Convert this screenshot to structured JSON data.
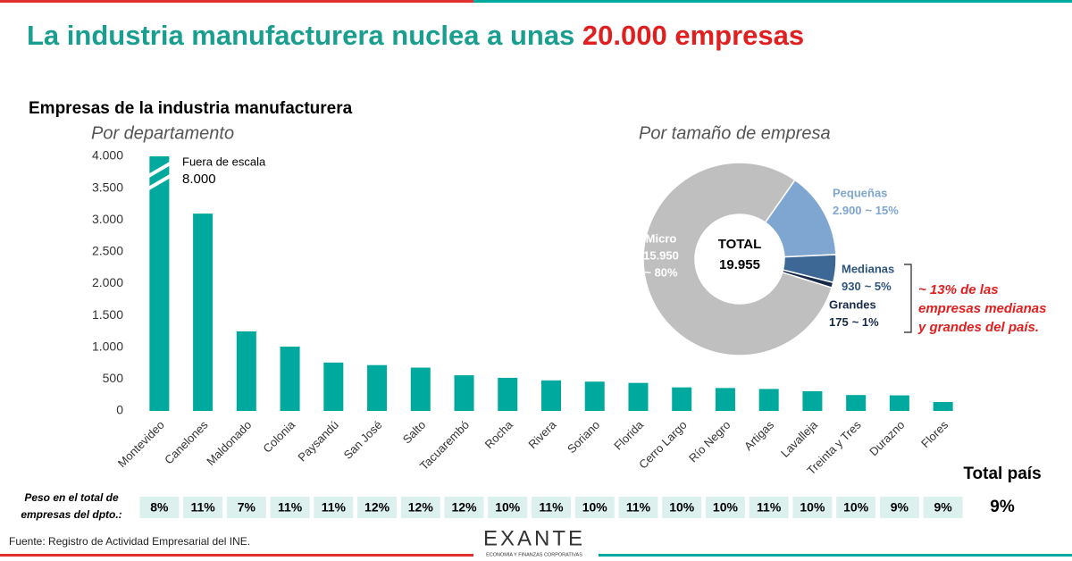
{
  "title": "La industria manufacturera nuclea a unas ",
  "title_highlight": "20.000 empresas",
  "section_title": "Empresas de la industria manufacturera",
  "chart_data": [
    {
      "type": "bar",
      "subtitle": "Por departamento",
      "color": "#00a99d",
      "categories": [
        "Montevideo",
        "Canelones",
        "Maldonado",
        "Colonia",
        "Paysandú",
        "San José",
        "Salto",
        "Tacuarembó",
        "Rocha",
        "Rivera",
        "Soriano",
        "Florida",
        "Cerro Largo",
        "Río Negro",
        "Artigas",
        "Lavalleja",
        "Treinta y Tres",
        "Durazno",
        "Flores"
      ],
      "values": [
        8000,
        3100,
        1250,
        1010,
        760,
        720,
        680,
        560,
        520,
        480,
        460,
        440,
        370,
        360,
        345,
        310,
        250,
        245,
        140
      ],
      "value_labels": [
        "8.000",
        null,
        null,
        null,
        null,
        null,
        null,
        null,
        null,
        null,
        null,
        null,
        null,
        null,
        null,
        null,
        null,
        null,
        null
      ],
      "annotation": "Fuera de escala",
      "ylim": [
        0,
        4000
      ],
      "yticks": [
        0,
        {
          "value": 500,
          "label": "500"
        },
        {
          "value": 1000,
          "label": "1.000"
        },
        {
          "value": 1500,
          "label": "1.500"
        },
        {
          "value": 2000,
          "label": "2.000"
        },
        {
          "value": 2500,
          "label": "2.500"
        },
        {
          "value": 3000,
          "label": "3.000"
        },
        {
          "value": 3500,
          "label": "3.500"
        },
        {
          "value": 4000,
          "label": "4.000"
        }
      ],
      "grid": false
    },
    {
      "type": "pie",
      "subtitle": "Por tamaño de empresa",
      "center_label": "TOTAL",
      "center_value": "19.955",
      "categories": [
        "Micro",
        "Pequeñas",
        "Medianas",
        "Grandes"
      ],
      "values": [
        15950,
        2900,
        930,
        175
      ],
      "value_labels": [
        "15.950",
        "2.900",
        "930",
        "175"
      ],
      "shares": [
        "~ 80%",
        "~ 15%",
        "~ 5%",
        "~ 1%"
      ],
      "colors": [
        "#bfbfbf",
        "#7ea6d0",
        "#3d6794",
        "#182a4a"
      ],
      "annotation": [
        "~ 13% de las",
        "empresas medianas",
        "y grandes del país."
      ]
    }
  ],
  "table": {
    "row_label": [
      "Peso en el total de",
      "empresas del dpto.:"
    ],
    "cells": [
      "8%",
      "11%",
      "7%",
      "11%",
      "11%",
      "12%",
      "12%",
      "12%",
      "10%",
      "11%",
      "10%",
      "11%",
      "10%",
      "10%",
      "11%",
      "10%",
      "10%",
      "9%",
      "9%"
    ],
    "total_header": "Total país",
    "total": "9%"
  },
  "source": "Fuente: Registro de Actividad Empresarial del INE.",
  "logo": "EXANTE",
  "logo_tagline": "ECONOMÍA Y FINANZAS CORPORATIVAS"
}
